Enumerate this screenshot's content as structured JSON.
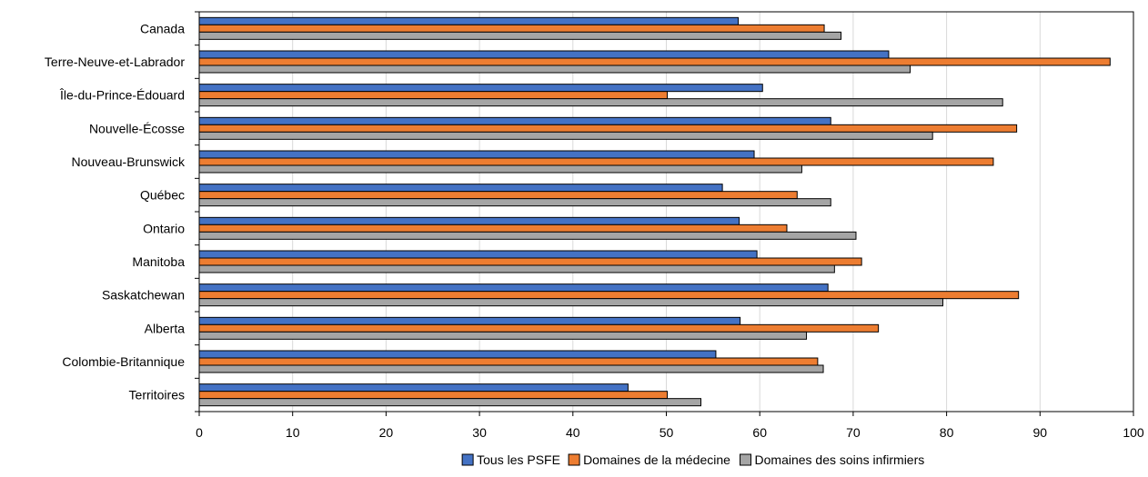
{
  "chart_data": {
    "type": "bar",
    "orientation": "horizontal",
    "categories": [
      "Canada",
      "Terre-Neuve-et-Labrador",
      "Île-du-Prince-Édouard",
      "Nouvelle-Écosse",
      "Nouveau-Brunswick",
      "Québec",
      "Ontario",
      "Manitoba",
      "Saskatchewan",
      "Alberta",
      "Colombie-Britannique",
      "Territoires"
    ],
    "series": [
      {
        "name": "Tous les PSFE",
        "color": "#4472C4",
        "values": [
          57.7,
          73.8,
          60.3,
          67.6,
          59.4,
          56.0,
          57.8,
          59.7,
          67.3,
          57.9,
          55.3,
          45.9
        ]
      },
      {
        "name": "Domaines de la médecine",
        "color": "#ED7D31",
        "values": [
          66.9,
          97.5,
          50.1,
          87.5,
          85.0,
          64.0,
          62.9,
          70.9,
          87.7,
          72.7,
          66.2,
          50.1
        ]
      },
      {
        "name": "Domaines des soins infirmiers",
        "color": "#A5A5A5",
        "values": [
          68.7,
          76.1,
          86.0,
          78.5,
          64.5,
          67.6,
          70.3,
          68.0,
          79.6,
          65.0,
          66.8,
          53.7
        ]
      }
    ],
    "x_ticks": [
      "0",
      "10",
      "20",
      "30",
      "40",
      "50",
      "60",
      "70",
      "80",
      "90",
      "100"
    ],
    "xlim": [
      0,
      100
    ],
    "grid": "vertical",
    "legend_position": "bottom"
  }
}
